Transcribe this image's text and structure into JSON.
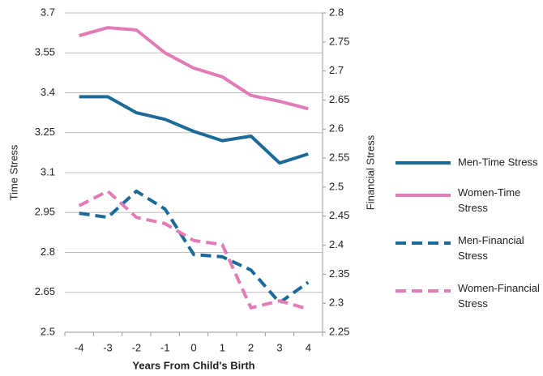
{
  "chart_data": {
    "type": "line",
    "x_label": "Years From Child's Birth",
    "y_label": "Time Stress",
    "y2_label": "Financial Stress",
    "categories": [
      "-4",
      "-3",
      "-2",
      "-1",
      "0",
      "1",
      "2",
      "3",
      "4"
    ],
    "ylim": [
      2.5,
      3.7
    ],
    "yticks": [
      2.5,
      2.65,
      2.8,
      2.95,
      3.1,
      3.25,
      3.4,
      3.55,
      3.7
    ],
    "y2lim": [
      2.25,
      2.8
    ],
    "y2ticks": [
      2.25,
      2.3,
      2.35,
      2.4,
      2.45,
      2.5,
      2.55,
      2.6,
      2.65,
      2.7,
      2.75,
      2.8
    ],
    "grid": true,
    "legend": "right",
    "series": [
      {
        "name": "Men-Time Stress",
        "color": "#1b6a98",
        "style": "solid",
        "values": [
          3.385,
          3.385,
          3.325,
          3.3,
          3.255,
          3.22,
          3.237,
          3.136,
          3.17
        ]
      },
      {
        "name": "Women-Time Stress",
        "color": "#e27bb6",
        "style": "solid",
        "values": [
          3.615,
          3.645,
          3.636,
          3.55,
          3.493,
          3.46,
          3.39,
          3.368,
          3.34
        ]
      },
      {
        "name": "Men-Financial Stress",
        "color": "#1b6a98",
        "style": "dashed",
        "axis": "y2",
        "values": [
          2.455,
          2.448,
          2.493,
          2.462,
          2.384,
          2.38,
          2.357,
          2.301,
          2.336
        ]
      },
      {
        "name": "Women-Financial Stress",
        "color": "#e27bb6",
        "style": "dashed",
        "axis": "y2",
        "values": [
          2.468,
          2.493,
          2.448,
          2.437,
          2.408,
          2.401,
          2.292,
          2.304,
          2.29
        ]
      }
    ]
  }
}
